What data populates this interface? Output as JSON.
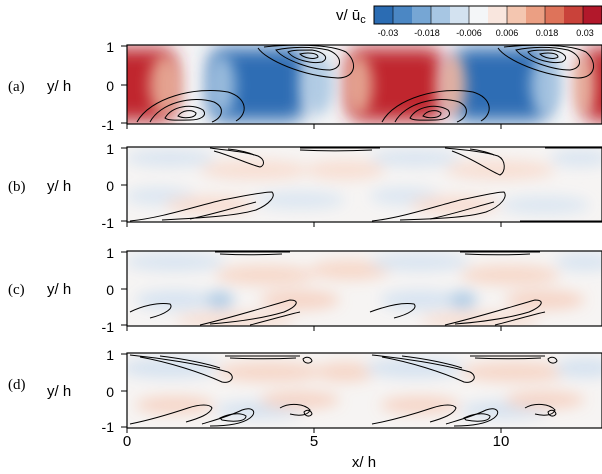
{
  "colorbar": {
    "label": "v/ ū",
    "label_sub": "c",
    "ticks": [
      "-0.03",
      "-0.018",
      "-0.006",
      "0.006",
      "0.018",
      "0.03"
    ],
    "colors": [
      "#2b6cb3",
      "#4b87c4",
      "#76a6d4",
      "#a7c6e3",
      "#d3e2f0",
      "#f4f6f8",
      "#f9e6de",
      "#f4c6b0",
      "#eb9f83",
      "#de735a",
      "#c9423a",
      "#b2182b"
    ]
  },
  "panels": [
    {
      "letter": "(a)",
      "ylabel": "y/ h",
      "yticks": [
        "1",
        "0",
        "-1"
      ]
    },
    {
      "letter": "(b)",
      "ylabel": "y/ h",
      "yticks": [
        "1",
        "0",
        "-1"
      ]
    },
    {
      "letter": "(c)",
      "ylabel": "y/ h",
      "yticks": [
        "1",
        "0",
        "-1"
      ]
    },
    {
      "letter": "(d)",
      "ylabel": "y/ h",
      "yticks": [
        "1",
        "0",
        "-1"
      ]
    }
  ],
  "xaxis": {
    "label": "x/ h",
    "ticks": [
      "0",
      "5",
      "10"
    ]
  }
}
